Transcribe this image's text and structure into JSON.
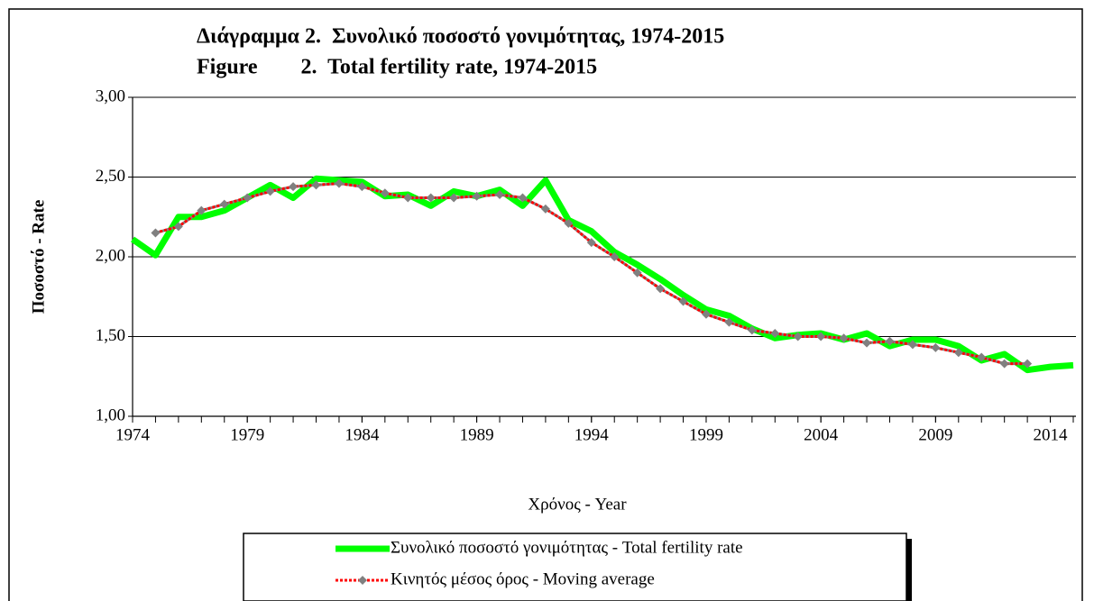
{
  "chart_data": {
    "type": "line",
    "title": [
      "Διάγραμμα 2.  Συνολικό ποσοστό γονιμότητας, 1974-2015",
      "Figure        2.  Total fertility rate, 1974-2015"
    ],
    "x_label": "Χρόνος - Year",
    "y_label": "Ποσοστό - Rate",
    "x": [
      1974,
      1975,
      1976,
      1977,
      1978,
      1979,
      1980,
      1981,
      1982,
      1983,
      1984,
      1985,
      1986,
      1987,
      1988,
      1989,
      1990,
      1991,
      1992,
      1993,
      1994,
      1995,
      1996,
      1997,
      1998,
      1999,
      2000,
      2001,
      2002,
      2003,
      2004,
      2005,
      2006,
      2007,
      2008,
      2009,
      2010,
      2011,
      2012,
      2013,
      2014,
      2015
    ],
    "series": [
      {
        "name": "Συνολικό ποσοστό γονιμότητας - Total fertility rate",
        "color": "#00ff00",
        "values": [
          2.11,
          2.01,
          2.25,
          2.25,
          2.29,
          2.37,
          2.45,
          2.37,
          2.49,
          2.48,
          2.47,
          2.38,
          2.39,
          2.32,
          2.41,
          2.38,
          2.42,
          2.32,
          2.48,
          2.23,
          2.16,
          2.03,
          1.95,
          1.86,
          1.76,
          1.67,
          1.63,
          1.55,
          1.49,
          1.51,
          1.52,
          1.48,
          1.52,
          1.44,
          1.48,
          1.48,
          1.44,
          1.35,
          1.39,
          1.29,
          1.31,
          1.32
        ]
      },
      {
        "name": "Κινητός μέσος όρος - Moving average",
        "color": "#ff0000",
        "marker_color": "#808080",
        "values": [
          null,
          2.15,
          2.19,
          2.29,
          2.33,
          2.37,
          2.41,
          2.44,
          2.45,
          2.46,
          2.44,
          2.4,
          2.37,
          2.37,
          2.37,
          2.38,
          2.39,
          2.37,
          2.3,
          2.21,
          2.09,
          2.0,
          1.9,
          1.8,
          1.72,
          1.64,
          1.59,
          1.54,
          1.52,
          1.5,
          1.5,
          1.49,
          1.46,
          1.47,
          1.45,
          1.43,
          1.4,
          1.37,
          1.33,
          1.33,
          null,
          null
        ]
      }
    ],
    "xlim": [
      1974,
      2015
    ],
    "xticks": [
      1974,
      1979,
      1984,
      1989,
      1994,
      1999,
      2004,
      2009,
      2014
    ],
    "ylim": [
      1,
      3
    ],
    "yticks": [
      {
        "value": 1,
        "label": "1,00"
      },
      {
        "value": 1.5,
        "label": "1,50"
      },
      {
        "value": 2,
        "label": "2,00"
      },
      {
        "value": 2.5,
        "label": "2,50"
      },
      {
        "value": 3,
        "label": "3,00"
      }
    ],
    "grid": true,
    "legend": "bottom"
  }
}
